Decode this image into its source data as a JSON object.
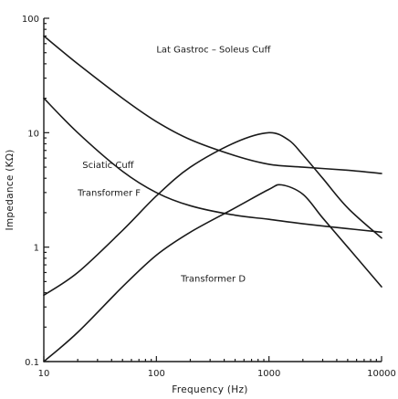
{
  "chart_data": {
    "type": "line",
    "xlabel": "Frequency (Hz)",
    "ylabel": "Impedance (KΩ)",
    "xscale": "log",
    "yscale": "log",
    "xlim": [
      10,
      10000
    ],
    "ylim": [
      0.1,
      100
    ],
    "xticks": [
      10,
      100,
      1000,
      10000
    ],
    "xtick_labels": [
      "10",
      "100",
      "1000",
      "10000"
    ],
    "yticks": [
      0.1,
      1,
      10,
      100
    ],
    "ytick_labels": [
      "0.1",
      "1",
      "10",
      "100"
    ],
    "grid": false,
    "series": [
      {
        "name": "Lat Gastroc - Soleus Cuff",
        "x": [
          10,
          20,
          50,
          100,
          200,
          500,
          1000,
          2000,
          5000,
          10000
        ],
        "y": [
          70,
          40,
          20,
          12.5,
          8.7,
          6.3,
          5.3,
          5.0,
          4.7,
          4.4
        ]
      },
      {
        "name": "Sciatic Cuff",
        "x": [
          10,
          20,
          50,
          100,
          200,
          500,
          1000,
          2000,
          5000,
          10000
        ],
        "y": [
          20,
          10,
          4.6,
          3.0,
          2.3,
          1.9,
          1.75,
          1.6,
          1.45,
          1.35
        ]
      },
      {
        "name": "Transformer F",
        "x": [
          10,
          20,
          50,
          100,
          200,
          500,
          1000,
          1500,
          2000,
          3000,
          5000,
          10000
        ],
        "y": [
          0.38,
          0.6,
          1.4,
          2.8,
          5.0,
          8.2,
          10,
          8.6,
          6.4,
          4.0,
          2.2,
          1.2
        ]
      },
      {
        "name": "Transformer D",
        "x": [
          10,
          20,
          50,
          100,
          200,
          500,
          1000,
          1300,
          2000,
          3000,
          5000,
          10000
        ],
        "y": [
          0.1,
          0.18,
          0.45,
          0.85,
          1.35,
          2.2,
          3.2,
          3.5,
          2.9,
          1.8,
          1.0,
          0.45
        ]
      }
    ],
    "annotations": [
      {
        "text": "Lat Gastroc – Soleus Cuff",
        "x": 100,
        "y": 50
      },
      {
        "text": "Sciatic Cuff",
        "x": 22,
        "y": 4.9
      },
      {
        "text": "Transformer F",
        "x": 20,
        "y": 2.8
      },
      {
        "text": "Transformer D",
        "x": 165,
        "y": 0.5
      }
    ]
  }
}
